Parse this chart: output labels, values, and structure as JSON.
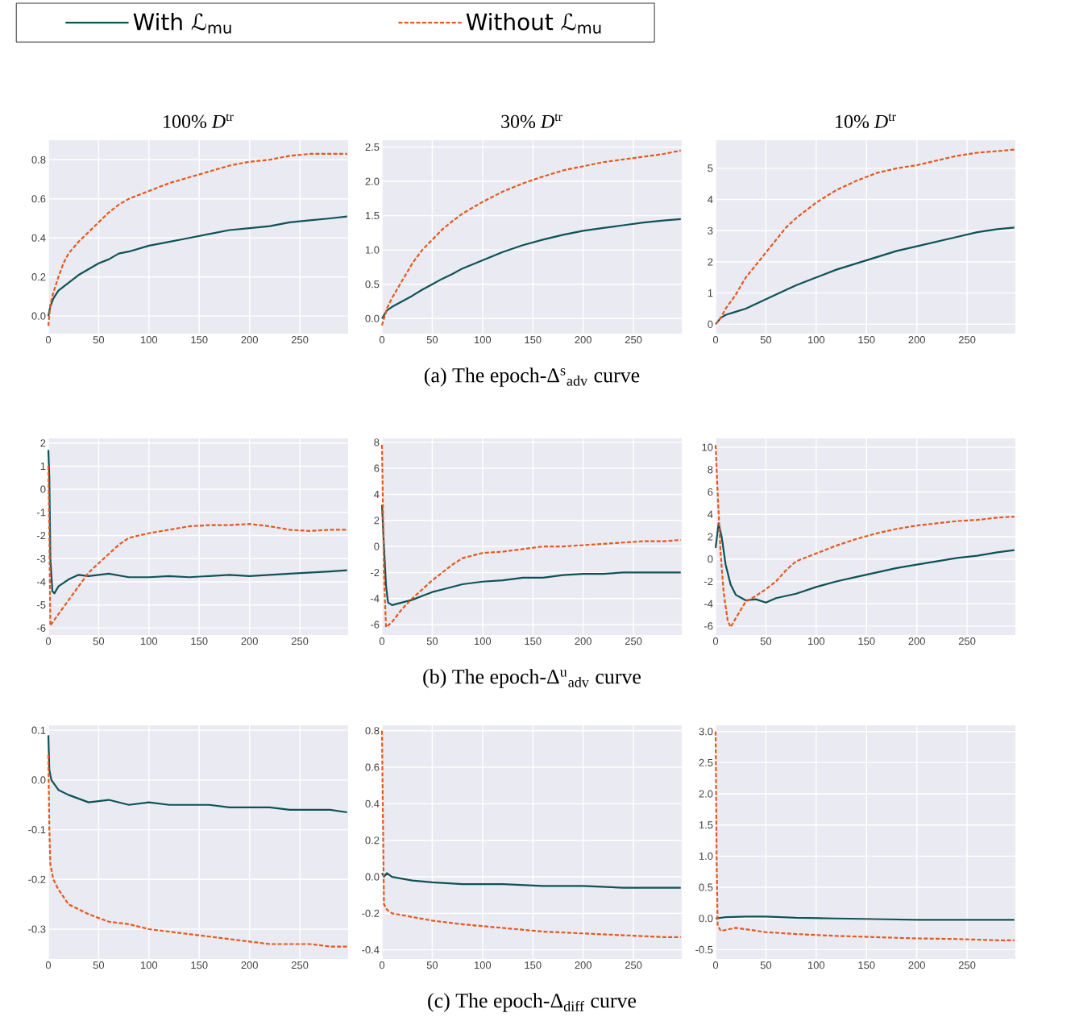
{
  "chart_data": [
    {
      "type": "line",
      "title": "100% *D*$^{tr}$",
      "legend": "top",
      "grid": true,
      "xlim": [
        0,
        298
      ],
      "ylim": [
        -0.09,
        0.9
      ],
      "xticks": [
        0,
        50,
        100,
        150,
        200,
        250
      ],
      "yticks": [
        {
          "value": 0,
          "label": "0.0"
        },
        0.2,
        0.4,
        0.6,
        0.8
      ],
      "series": [
        {
          "name": "With ℒ$_{mu}$",
          "color": "#0e5257",
          "line_style": "solid",
          "x": [
            0,
            2,
            5,
            10,
            20,
            30,
            40,
            50,
            60,
            70,
            80,
            100,
            120,
            140,
            160,
            180,
            200,
            220,
            240,
            260,
            280,
            297
          ],
          "values": [
            0.0,
            0.05,
            0.09,
            0.13,
            0.17,
            0.21,
            0.24,
            0.27,
            0.29,
            0.32,
            0.33,
            0.36,
            0.38,
            0.4,
            0.42,
            0.44,
            0.45,
            0.46,
            0.48,
            0.49,
            0.5,
            0.51
          ]
        },
        {
          "name": "Without ℒ$_{mu}$",
          "color": "#e4581c",
          "line_style": "dashed",
          "x": [
            0,
            2,
            5,
            10,
            15,
            20,
            30,
            40,
            50,
            60,
            70,
            80,
            100,
            120,
            140,
            160,
            180,
            200,
            220,
            240,
            260,
            280,
            297
          ],
          "values": [
            -0.05,
            0.06,
            0.12,
            0.2,
            0.27,
            0.32,
            0.38,
            0.43,
            0.48,
            0.53,
            0.57,
            0.6,
            0.64,
            0.68,
            0.71,
            0.74,
            0.77,
            0.79,
            0.8,
            0.82,
            0.83,
            0.83,
            0.83
          ]
        }
      ]
    },
    {
      "type": "line",
      "title": "30% *D*$^{tr}$",
      "annotations": [
        "(a) The epoch-Δ$^{s}$$_{adv}$ curve"
      ],
      "grid": true,
      "xlim": [
        0,
        298
      ],
      "ylim": [
        -0.22,
        2.6
      ],
      "xticks": [
        0,
        50,
        100,
        150,
        200,
        250
      ],
      "yticks": [
        {
          "value": 0,
          "label": "0.0"
        },
        0.5,
        {
          "value": 1,
          "label": "1.0"
        },
        1.5,
        {
          "value": 2,
          "label": "2.0"
        },
        2.5
      ],
      "series": [
        {
          "color": "#0e5257",
          "line_style": "solid",
          "x": [
            0,
            5,
            10,
            20,
            30,
            40,
            50,
            60,
            70,
            80,
            100,
            120,
            140,
            160,
            180,
            200,
            220,
            240,
            260,
            280,
            297
          ],
          "values": [
            0.0,
            0.12,
            0.17,
            0.25,
            0.33,
            0.42,
            0.5,
            0.58,
            0.65,
            0.73,
            0.85,
            0.97,
            1.07,
            1.15,
            1.22,
            1.28,
            1.32,
            1.36,
            1.4,
            1.43,
            1.45
          ]
        },
        {
          "color": "#e4581c",
          "line_style": "dashed",
          "x": [
            0,
            5,
            10,
            20,
            30,
            40,
            50,
            60,
            70,
            80,
            100,
            120,
            140,
            160,
            180,
            200,
            220,
            240,
            260,
            280,
            297
          ],
          "values": [
            -0.1,
            0.15,
            0.3,
            0.55,
            0.8,
            1.0,
            1.15,
            1.3,
            1.42,
            1.53,
            1.7,
            1.85,
            1.97,
            2.07,
            2.16,
            2.22,
            2.28,
            2.32,
            2.36,
            2.4,
            2.45
          ]
        }
      ]
    },
    {
      "type": "line",
      "title": "10% *D*$^{tr}$",
      "grid": true,
      "xlim": [
        0,
        298
      ],
      "ylim": [
        -0.3,
        5.9
      ],
      "xticks": [
        0,
        50,
        100,
        150,
        200,
        250
      ],
      "yticks": [
        0,
        1,
        2,
        3,
        4,
        5
      ],
      "series": [
        {
          "color": "#0e5257",
          "line_style": "solid",
          "x": [
            0,
            5,
            10,
            20,
            30,
            40,
            50,
            60,
            70,
            80,
            100,
            120,
            140,
            160,
            180,
            200,
            220,
            240,
            260,
            280,
            297
          ],
          "values": [
            0,
            0.2,
            0.3,
            0.4,
            0.5,
            0.65,
            0.8,
            0.95,
            1.1,
            1.25,
            1.5,
            1.75,
            1.95,
            2.15,
            2.35,
            2.5,
            2.65,
            2.8,
            2.95,
            3.05,
            3.1
          ]
        },
        {
          "color": "#e4581c",
          "line_style": "dashed",
          "x": [
            0,
            5,
            10,
            20,
            30,
            40,
            50,
            60,
            70,
            80,
            100,
            120,
            140,
            160,
            180,
            200,
            220,
            240,
            260,
            280,
            297
          ],
          "values": [
            0,
            0.2,
            0.5,
            0.95,
            1.5,
            1.9,
            2.3,
            2.7,
            3.1,
            3.4,
            3.9,
            4.3,
            4.6,
            4.85,
            5.0,
            5.1,
            5.25,
            5.4,
            5.5,
            5.55,
            5.6
          ]
        }
      ]
    },
    {
      "type": "line",
      "grid": true,
      "xlim": [
        0,
        298
      ],
      "ylim": [
        -6.3,
        2.2
      ],
      "xticks": [
        0,
        50,
        100,
        150,
        200,
        250
      ],
      "yticks": [
        -6,
        -5,
        -4,
        -3,
        -2,
        -1,
        0,
        1,
        2
      ],
      "series": [
        {
          "color": "#0e5257",
          "line_style": "solid",
          "x": [
            0,
            1,
            2,
            4,
            6,
            10,
            20,
            30,
            40,
            50,
            60,
            80,
            100,
            120,
            140,
            160,
            180,
            200,
            220,
            240,
            260,
            280,
            297
          ],
          "values": [
            1.7,
            0.5,
            -3,
            -4.4,
            -4.5,
            -4.2,
            -3.9,
            -3.7,
            -3.75,
            -3.7,
            -3.65,
            -3.8,
            -3.8,
            -3.75,
            -3.8,
            -3.75,
            -3.7,
            -3.75,
            -3.7,
            -3.65,
            -3.6,
            -3.55,
            -3.5
          ]
        },
        {
          "color": "#e4581c",
          "line_style": "dashed",
          "x": [
            0,
            1,
            2,
            5,
            10,
            20,
            30,
            40,
            50,
            60,
            70,
            80,
            100,
            120,
            140,
            160,
            180,
            200,
            220,
            240,
            260,
            280,
            297
          ],
          "values": [
            1.0,
            -2,
            -5.9,
            -5.7,
            -5.4,
            -4.8,
            -4.2,
            -3.6,
            -3.2,
            -2.8,
            -2.4,
            -2.1,
            -1.9,
            -1.75,
            -1.6,
            -1.55,
            -1.55,
            -1.5,
            -1.6,
            -1.75,
            -1.8,
            -1.75,
            -1.75
          ]
        }
      ]
    },
    {
      "type": "line",
      "annotations": [
        "(b) The epoch-Δ$^{u}$$_{adv}$ curve"
      ],
      "grid": true,
      "xlim": [
        0,
        298
      ],
      "ylim": [
        -6.8,
        8.3
      ],
      "xticks": [
        0,
        50,
        100,
        150,
        200,
        250
      ],
      "yticks": [
        -6,
        -4,
        -2,
        0,
        2,
        4,
        6,
        8
      ],
      "series": [
        {
          "color": "#0e5257",
          "line_style": "solid",
          "x": [
            0,
            2,
            4,
            6,
            10,
            20,
            30,
            40,
            50,
            60,
            80,
            100,
            120,
            140,
            160,
            180,
            200,
            220,
            240,
            260,
            280,
            297
          ],
          "values": [
            3.2,
            0,
            -3,
            -4.3,
            -4.5,
            -4.3,
            -4.1,
            -3.8,
            -3.5,
            -3.3,
            -2.9,
            -2.7,
            -2.6,
            -2.4,
            -2.4,
            -2.2,
            -2.1,
            -2.1,
            -2.0,
            -2.0,
            -2.0,
            -2.0
          ]
        },
        {
          "color": "#e4581c",
          "line_style": "dashed",
          "x": [
            0,
            2,
            4,
            10,
            20,
            30,
            40,
            50,
            60,
            70,
            80,
            100,
            120,
            140,
            160,
            180,
            200,
            220,
            240,
            260,
            280,
            297
          ],
          "values": [
            7.8,
            -2,
            -6.2,
            -5.8,
            -4.8,
            -4.0,
            -3.3,
            -2.6,
            -2.0,
            -1.4,
            -0.9,
            -0.5,
            -0.4,
            -0.2,
            0.0,
            0.0,
            0.1,
            0.2,
            0.3,
            0.4,
            0.4,
            0.5
          ]
        }
      ]
    },
    {
      "type": "line",
      "grid": true,
      "xlim": [
        0,
        298
      ],
      "ylim": [
        -6.8,
        10.8
      ],
      "xticks": [
        0,
        50,
        100,
        150,
        200,
        250
      ],
      "yticks": [
        -6,
        -4,
        -2,
        0,
        2,
        4,
        6,
        8,
        10
      ],
      "series": [
        {
          "color": "#0e5257",
          "line_style": "solid",
          "x": [
            0,
            3,
            6,
            10,
            15,
            20,
            30,
            40,
            50,
            60,
            80,
            100,
            120,
            140,
            160,
            180,
            200,
            220,
            240,
            260,
            280,
            297
          ],
          "values": [
            1.0,
            3.2,
            2,
            -0.5,
            -2.3,
            -3.2,
            -3.7,
            -3.6,
            -3.9,
            -3.5,
            -3.1,
            -2.5,
            -2.0,
            -1.6,
            -1.2,
            -0.8,
            -0.5,
            -0.2,
            0.1,
            0.3,
            0.6,
            0.8
          ]
        },
        {
          "color": "#e4581c",
          "line_style": "dashed",
          "x": [
            0,
            2,
            5,
            8,
            12,
            15,
            20,
            30,
            40,
            50,
            60,
            70,
            80,
            100,
            120,
            140,
            160,
            180,
            200,
            220,
            240,
            260,
            280,
            297
          ],
          "values": [
            10.2,
            6,
            0.5,
            -3,
            -5.5,
            -6.1,
            -5.3,
            -3.8,
            -3.3,
            -2.7,
            -2.0,
            -1.0,
            -0.2,
            0.5,
            1.2,
            1.8,
            2.3,
            2.7,
            3.0,
            3.2,
            3.4,
            3.5,
            3.7,
            3.8
          ]
        }
      ]
    },
    {
      "type": "line",
      "grid": true,
      "xlim": [
        0,
        298
      ],
      "ylim": [
        -0.36,
        0.11
      ],
      "xticks": [
        0,
        50,
        100,
        150,
        200,
        250
      ],
      "yticks": [
        -0.3,
        -0.2,
        -0.1,
        {
          "value": 0,
          "label": "0.0"
        },
        0.1
      ],
      "series": [
        {
          "color": "#0e5257",
          "line_style": "solid",
          "x": [
            0,
            1,
            3,
            10,
            20,
            40,
            60,
            80,
            100,
            120,
            140,
            160,
            180,
            200,
            220,
            240,
            260,
            280,
            297
          ],
          "values": [
            0.09,
            0.02,
            0.0,
            -0.02,
            -0.03,
            -0.045,
            -0.04,
            -0.05,
            -0.045,
            -0.05,
            -0.05,
            -0.05,
            -0.055,
            -0.055,
            -0.055,
            -0.06,
            -0.06,
            -0.06,
            -0.065
          ]
        },
        {
          "color": "#e4581c",
          "line_style": "dashed",
          "x": [
            0,
            1,
            2,
            5,
            10,
            20,
            30,
            40,
            60,
            80,
            100,
            120,
            140,
            160,
            180,
            200,
            220,
            240,
            260,
            280,
            297
          ],
          "values": [
            0.05,
            -0.1,
            -0.17,
            -0.2,
            -0.22,
            -0.25,
            -0.26,
            -0.27,
            -0.285,
            -0.29,
            -0.3,
            -0.305,
            -0.31,
            -0.315,
            -0.32,
            -0.325,
            -0.33,
            -0.33,
            -0.33,
            -0.335,
            -0.335
          ]
        }
      ]
    },
    {
      "type": "line",
      "annotations": [
        "(c) The epoch-Δ$_{diff}$ curve"
      ],
      "grid": true,
      "xlim": [
        0,
        298
      ],
      "ylim": [
        -0.45,
        0.83
      ],
      "xticks": [
        0,
        50,
        100,
        150,
        200,
        250
      ],
      "yticks": [
        -0.4,
        -0.2,
        {
          "value": 0,
          "label": "0.0"
        },
        0.2,
        0.4,
        0.6,
        0.8
      ],
      "series": [
        {
          "color": "#0e5257",
          "line_style": "solid",
          "x": [
            0,
            2,
            5,
            10,
            30,
            50,
            80,
            120,
            160,
            200,
            240,
            280,
            297
          ],
          "values": [
            0.02,
            0,
            0.02,
            0.0,
            -0.02,
            -0.03,
            -0.04,
            -0.04,
            -0.05,
            -0.05,
            -0.06,
            -0.06,
            -0.06
          ]
        },
        {
          "color": "#e4581c",
          "line_style": "dashed",
          "x": [
            0,
            1,
            2,
            5,
            10,
            30,
            50,
            80,
            120,
            160,
            200,
            240,
            280,
            297
          ],
          "values": [
            0.8,
            0.3,
            -0.15,
            -0.18,
            -0.2,
            -0.22,
            -0.24,
            -0.26,
            -0.28,
            -0.3,
            -0.31,
            -0.32,
            -0.33,
            -0.33
          ]
        }
      ]
    },
    {
      "type": "line",
      "grid": true,
      "xlim": [
        0,
        298
      ],
      "ylim": [
        -0.65,
        3.1
      ],
      "xticks": [
        0,
        50,
        100,
        150,
        200,
        250
      ],
      "yticks": [
        -0.5,
        {
          "value": 0,
          "label": "0.0"
        },
        0.5,
        {
          "value": 1,
          "label": "1.0"
        },
        1.5,
        {
          "value": 2,
          "label": "2.0"
        },
        2.5,
        {
          "value": 3,
          "label": "3.0"
        }
      ],
      "series": [
        {
          "color": "#0e5257",
          "line_style": "solid",
          "x": [
            0,
            10,
            30,
            50,
            80,
            120,
            160,
            200,
            240,
            280,
            297
          ],
          "values": [
            0,
            0.02,
            0.03,
            0.03,
            0.01,
            0,
            -0.01,
            -0.02,
            -0.02,
            -0.02,
            -0.02
          ]
        },
        {
          "color": "#e4581c",
          "line_style": "dashed",
          "x": [
            0,
            1,
            2,
            5,
            20,
            50,
            80,
            120,
            160,
            200,
            240,
            280,
            297
          ],
          "values": [
            3.0,
            1.0,
            -0.1,
            -0.2,
            -0.15,
            -0.22,
            -0.25,
            -0.28,
            -0.3,
            -0.32,
            -0.33,
            -0.35,
            -0.35
          ]
        }
      ]
    }
  ]
}
